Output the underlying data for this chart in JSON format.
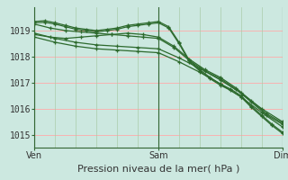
{
  "background_color": "#cce8e0",
  "plot_bg_color": "#cce8e0",
  "grid_color_h": "#ffaaaa",
  "grid_color_v": "#aaccaa",
  "line_color": "#2d6a2d",
  "ylim": [
    1014.5,
    1019.9
  ],
  "xlim": [
    0,
    48
  ],
  "yticks": [
    1015,
    1016,
    1017,
    1018,
    1019
  ],
  "xtick_positions": [
    0,
    24,
    48
  ],
  "xtick_labels": [
    "Ven",
    "Sam",
    "Dim"
  ],
  "xlabel": "Pression niveau de la mer( hPa )",
  "xlabel_fontsize": 8,
  "tick_fontsize": 7,
  "figsize": [
    3.2,
    2.0
  ],
  "dpi": 100,
  "lines": [
    {
      "x": [
        0,
        2,
        4,
        6,
        8,
        10,
        12,
        14,
        16,
        18,
        20,
        22,
        24,
        26,
        28,
        30,
        32,
        34,
        36,
        38,
        40,
        42,
        44,
        46,
        48
      ],
      "y": [
        1019.35,
        1019.38,
        1019.3,
        1019.2,
        1019.1,
        1019.05,
        1019.0,
        1019.05,
        1019.1,
        1019.2,
        1019.25,
        1019.3,
        1019.35,
        1019.15,
        1018.55,
        1017.85,
        1017.5,
        1017.2,
        1016.95,
        1016.75,
        1016.5,
        1016.1,
        1015.75,
        1015.4,
        1015.1
      ]
    },
    {
      "x": [
        0,
        2,
        4,
        6,
        8,
        10,
        12,
        14,
        16,
        18,
        20,
        22,
        24,
        26,
        28,
        30,
        32,
        34,
        36,
        38,
        40,
        42,
        44,
        46,
        48
      ],
      "y": [
        1019.3,
        1019.32,
        1019.25,
        1019.15,
        1019.05,
        1019.0,
        1018.95,
        1019.0,
        1019.05,
        1019.15,
        1019.2,
        1019.25,
        1019.3,
        1019.1,
        1018.5,
        1017.8,
        1017.45,
        1017.15,
        1016.9,
        1016.7,
        1016.45,
        1016.05,
        1015.7,
        1015.35,
        1015.05
      ]
    },
    {
      "x": [
        0,
        3,
        6,
        9,
        12,
        15,
        18,
        21,
        24,
        27,
        30,
        33,
        36,
        39,
        42,
        45,
        48
      ],
      "y": [
        1018.85,
        1018.75,
        1018.7,
        1018.75,
        1018.8,
        1018.85,
        1018.9,
        1018.85,
        1018.75,
        1018.4,
        1017.9,
        1017.5,
        1017.2,
        1016.8,
        1016.3,
        1015.8,
        1015.45
      ]
    },
    {
      "x": [
        0,
        3,
        6,
        9,
        12,
        15,
        18,
        21,
        24,
        27,
        30,
        33,
        36,
        39,
        42,
        45,
        48
      ],
      "y": [
        1019.25,
        1019.1,
        1019.0,
        1018.95,
        1018.9,
        1018.85,
        1018.8,
        1018.75,
        1018.7,
        1018.35,
        1017.85,
        1017.45,
        1017.15,
        1016.75,
        1016.25,
        1015.75,
        1015.4
      ]
    },
    {
      "x": [
        0,
        4,
        8,
        12,
        16,
        20,
        24,
        28,
        32,
        36,
        40,
        44,
        48
      ],
      "y": [
        1018.9,
        1018.7,
        1018.55,
        1018.45,
        1018.4,
        1018.35,
        1018.3,
        1017.95,
        1017.55,
        1017.1,
        1016.6,
        1016.0,
        1015.5
      ]
    },
    {
      "x": [
        0,
        4,
        8,
        12,
        16,
        20,
        24,
        28,
        32,
        36,
        40,
        44,
        48
      ],
      "y": [
        1018.75,
        1018.55,
        1018.4,
        1018.3,
        1018.25,
        1018.2,
        1018.15,
        1017.8,
        1017.4,
        1016.95,
        1016.45,
        1015.85,
        1015.3
      ]
    }
  ],
  "vlines": [
    0,
    24,
    48
  ],
  "vline_color": "#336633",
  "vline_lw": 0.8
}
